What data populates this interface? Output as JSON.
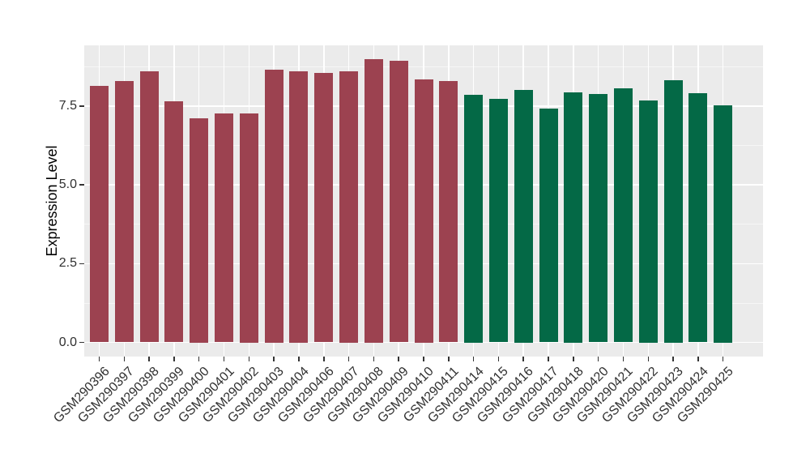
{
  "figure": {
    "background": "#FFFFFF",
    "panel_background": "#EBEBEB",
    "grid_color": "#FFFFFF",
    "tick_color": "#333333",
    "text_color": "#303030"
  },
  "chart_data": {
    "type": "bar",
    "title": "",
    "xlabel": "",
    "ylabel": "Expression Level",
    "ylim": [
      -0.45,
      9.43
    ],
    "yticks": [
      0,
      2.5,
      5,
      7.5
    ],
    "ytick_labels": [
      "0.0",
      "2.5",
      "5.0",
      "7.5"
    ],
    "y_minor_ticks": [
      1.25,
      3.75,
      6.25,
      8.75
    ],
    "grid": "on",
    "legend_position": "none",
    "categories": [
      "GSM290396",
      "GSM290397",
      "GSM290398",
      "GSM290399",
      "GSM290400",
      "GSM290401",
      "GSM290402",
      "GSM290403",
      "GSM290404",
      "GSM290406",
      "GSM290407",
      "GSM290408",
      "GSM290409",
      "GSM290410",
      "GSM290411",
      "GSM290414",
      "GSM290415",
      "GSM290416",
      "GSM290417",
      "GSM290418",
      "GSM290420",
      "GSM290421",
      "GSM290422",
      "GSM290423",
      "GSM290424",
      "GSM290425"
    ],
    "values": [
      8.14,
      8.3,
      8.61,
      7.65,
      7.12,
      7.27,
      7.28,
      8.66,
      8.6,
      8.55,
      8.6,
      8.98,
      8.94,
      8.34,
      8.31,
      7.87,
      7.74,
      8.01,
      7.42,
      7.95,
      7.89,
      8.07,
      7.68,
      8.32,
      7.91,
      7.53
    ],
    "groups": [
      {
        "name": "maroon-group",
        "color": "#9C4250",
        "count": 15
      },
      {
        "name": "green-group",
        "color": "#046946",
        "count": 11
      }
    ]
  }
}
